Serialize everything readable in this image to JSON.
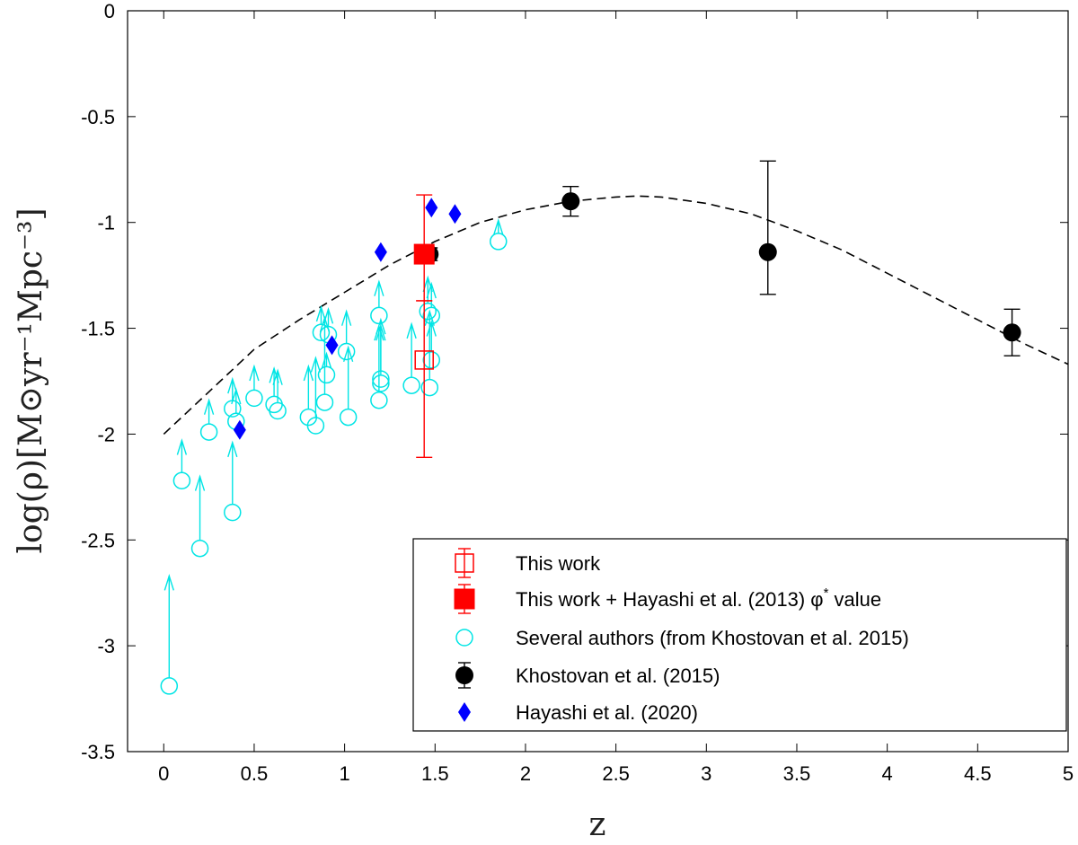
{
  "chart_data": {
    "type": "scatter",
    "xlabel": "z",
    "ylabel": "log(ρ)[M⊙yr⁻¹Mpc⁻³]",
    "xlim": [
      -0.2,
      5
    ],
    "ylim": [
      -3.5,
      0
    ],
    "x_ticks": [
      "0",
      "0.5",
      "1",
      "1.5",
      "2",
      "2.5",
      "3",
      "3.5",
      "4",
      "4.5",
      "5"
    ],
    "x_tick_values": [
      0,
      0.5,
      1,
      1.5,
      2,
      2.5,
      3,
      3.5,
      4,
      4.5,
      5
    ],
    "y_ticks": [
      "0",
      "-0.5",
      "-1",
      "-1.5",
      "-2",
      "-2.5",
      "-3",
      "-3.5"
    ],
    "y_tick_values": [
      0,
      -0.5,
      -1,
      -1.5,
      -2,
      -2.5,
      -3,
      -3.5
    ],
    "colors": {
      "this_work": "#ff0000",
      "several": "#00e5e5",
      "khostovan": "#000000",
      "hayashi": "#0000ff",
      "fit": "#000000"
    },
    "fit_curve": {
      "name": "fit",
      "style": "dashed",
      "points": [
        [
          0,
          -2.0
        ],
        [
          0.25,
          -1.8
        ],
        [
          0.5,
          -1.6
        ],
        [
          0.75,
          -1.46
        ],
        [
          1,
          -1.33
        ],
        [
          1.25,
          -1.2
        ],
        [
          1.5,
          -1.09
        ],
        [
          1.75,
          -1.0
        ],
        [
          2,
          -0.94
        ],
        [
          2.25,
          -0.9
        ],
        [
          2.5,
          -0.88
        ],
        [
          2.62,
          -0.875
        ],
        [
          2.75,
          -0.88
        ],
        [
          3,
          -0.91
        ],
        [
          3.25,
          -0.96
        ],
        [
          3.5,
          -1.04
        ],
        [
          3.75,
          -1.13
        ],
        [
          4,
          -1.24
        ],
        [
          4.25,
          -1.35
        ],
        [
          4.5,
          -1.46
        ],
        [
          4.75,
          -1.57
        ],
        [
          5,
          -1.67
        ]
      ]
    },
    "series": [
      {
        "name": "This work",
        "marker": "open-square",
        "points": [
          {
            "x": 1.44,
            "y": -1.65,
            "err_low": -2.11,
            "err_high": -1.37
          }
        ]
      },
      {
        "name": "This work + Hayashi et al. (2013) φ* value",
        "marker": "filled-square",
        "points": [
          {
            "x": 1.44,
            "y": -1.15,
            "err_low": -1.37,
            "err_high": -0.87
          }
        ]
      },
      {
        "name": "Several authors (from Khostovan et al. 2015)",
        "marker": "open-circle-arrow",
        "points": [
          {
            "x": 0.03,
            "y": -3.19,
            "arrow_top": -2.67
          },
          {
            "x": 0.1,
            "y": -2.22,
            "arrow_top": -2.03
          },
          {
            "x": 0.2,
            "y": -2.54,
            "arrow_top": -2.2
          },
          {
            "x": 0.25,
            "y": -1.99,
            "arrow_top": -1.84
          },
          {
            "x": 0.38,
            "y": -2.37,
            "arrow_top": -2.04
          },
          {
            "x": 0.38,
            "y": -1.88,
            "arrow_top": -1.74
          },
          {
            "x": 0.4,
            "y": -1.94,
            "arrow_top": -1.79
          },
          {
            "x": 0.5,
            "y": -1.83,
            "arrow_top": -1.68
          },
          {
            "x": 0.61,
            "y": -1.86,
            "arrow_top": -1.69
          },
          {
            "x": 0.63,
            "y": -1.89,
            "arrow_top": -1.7
          },
          {
            "x": 0.8,
            "y": -1.92,
            "arrow_top": -1.68
          },
          {
            "x": 0.84,
            "y": -1.96,
            "arrow_top": -1.64
          },
          {
            "x": 0.87,
            "y": -1.52,
            "arrow_top": -1.4
          },
          {
            "x": 0.89,
            "y": -1.85,
            "arrow_top": -1.45
          },
          {
            "x": 0.9,
            "y": -1.72,
            "arrow_top": -1.62
          },
          {
            "x": 0.91,
            "y": -1.53,
            "arrow_top": -1.41
          },
          {
            "x": 1.01,
            "y": -1.61,
            "arrow_top": -1.42
          },
          {
            "x": 1.02,
            "y": -1.92,
            "arrow_top": -1.59
          },
          {
            "x": 1.19,
            "y": -1.44,
            "arrow_top": -1.28
          },
          {
            "x": 1.19,
            "y": -1.84,
            "arrow_top": -1.49
          },
          {
            "x": 1.2,
            "y": -1.74,
            "arrow_top": -1.46
          },
          {
            "x": 1.2,
            "y": -1.76,
            "arrow_top": -1.49
          },
          {
            "x": 1.37,
            "y": -1.77,
            "arrow_top": -1.48
          },
          {
            "x": 1.46,
            "y": -1.42,
            "arrow_top": -1.26
          },
          {
            "x": 1.47,
            "y": -1.78,
            "arrow_top": -1.42
          },
          {
            "x": 1.48,
            "y": -1.44,
            "arrow_top": -1.29
          },
          {
            "x": 1.48,
            "y": -1.65,
            "arrow_top": -1.47
          },
          {
            "x": 1.85,
            "y": -1.09,
            "arrow_top": -0.99
          }
        ]
      },
      {
        "name": "Khostovan et al. (2015)",
        "marker": "filled-circle",
        "points": [
          {
            "x": 1.47,
            "y": -1.15,
            "err_low": -1.18,
            "err_high": -1.12
          },
          {
            "x": 2.25,
            "y": -0.9,
            "err_low": -0.97,
            "err_high": -0.83
          },
          {
            "x": 3.34,
            "y": -1.14,
            "err_low": -1.34,
            "err_high": -0.71
          },
          {
            "x": 4.69,
            "y": -1.52,
            "err_low": -1.63,
            "err_high": -1.41
          }
        ]
      },
      {
        "name": "Hayashi et al. (2020)",
        "marker": "filled-diamond",
        "points": [
          {
            "x": 0.42,
            "y": -1.98
          },
          {
            "x": 0.93,
            "y": -1.58
          },
          {
            "x": 1.2,
            "y": -1.14
          },
          {
            "x": 1.48,
            "y": -0.93
          },
          {
            "x": 1.61,
            "y": -0.96
          }
        ]
      }
    ],
    "legend": {
      "location": "bottom-right",
      "entries": [
        {
          "label": "This work",
          "superscript": ""
        },
        {
          "label": "This work + Hayashi et al. (2013) φ",
          "superscript": "*",
          "label_suffix": " value"
        },
        {
          "label": "Several authors (from Khostovan et al. 2015)",
          "superscript": ""
        },
        {
          "label": "Khostovan et al. (2015)",
          "superscript": ""
        },
        {
          "label": "Hayashi et al. (2020)",
          "superscript": ""
        }
      ]
    }
  }
}
